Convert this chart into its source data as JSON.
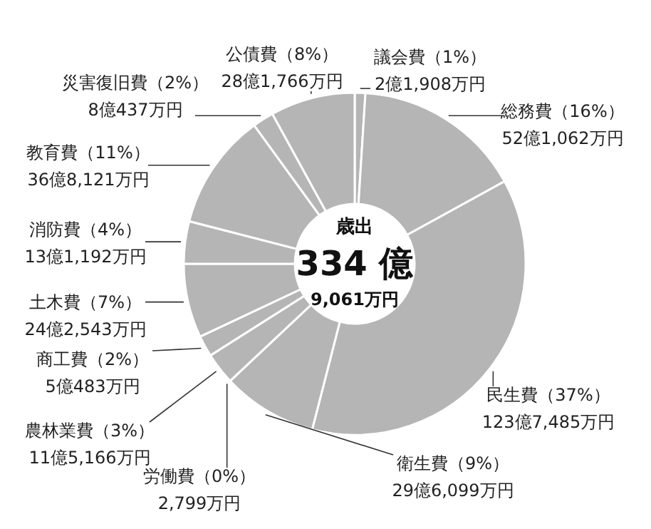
{
  "chart_data": {
    "type": "donut",
    "categories": [
      "議会費",
      "総務費",
      "民生費",
      "衛生費",
      "労働費",
      "農林業費",
      "商工費",
      "土木費",
      "消防費",
      "教育費",
      "災害復旧費",
      "公債費"
    ],
    "values": [
      1,
      16,
      37,
      9,
      0,
      3,
      2,
      7,
      4,
      11,
      2,
      8
    ],
    "value_labels": [
      "（1%）",
      "（16%）",
      "（37%）",
      "（9%）",
      "（0%）",
      "（3%）",
      "（2%）",
      "（7%）",
      "（4%）",
      "（11%）",
      "（2%）",
      "（8%）"
    ],
    "colors": [
      "#b5b5b5",
      "#b5b5b5",
      "#b5b5b5",
      "#b5b5b5",
      "#b5b5b5",
      "#b5b5b5",
      "#b5b5b5",
      "#b5b5b5",
      "#b5b5b5",
      "#b5b5b5",
      "#b5b5b5",
      "#b5b5b5"
    ],
    "annotations": [
      "歳出",
      "334 億",
      "9,061万円",
      {
        "text": "2億1,908万円",
        "x": "議会費"
      },
      {
        "text": "52億1,062万円",
        "x": "総務費"
      },
      {
        "text": "123億7,485万円",
        "x": "民生費"
      },
      {
        "text": "29億6,099万円",
        "x": "衛生費"
      },
      {
        "text": "2,799万円",
        "x": "労働費"
      },
      {
        "text": "11億5,166万円",
        "x": "農林業費"
      },
      {
        "text": "5億483万円",
        "x": "商工費"
      },
      {
        "text": "24億2,543万円",
        "x": "土木費"
      },
      {
        "text": "13億1,192万円",
        "x": "消防費"
      },
      {
        "text": "36億8,121万円",
        "x": "教育費"
      },
      {
        "text": "8億437万円",
        "x": "災害復旧費"
      },
      {
        "text": "28億1,766万円",
        "x": "公債費"
      }
    ]
  }
}
